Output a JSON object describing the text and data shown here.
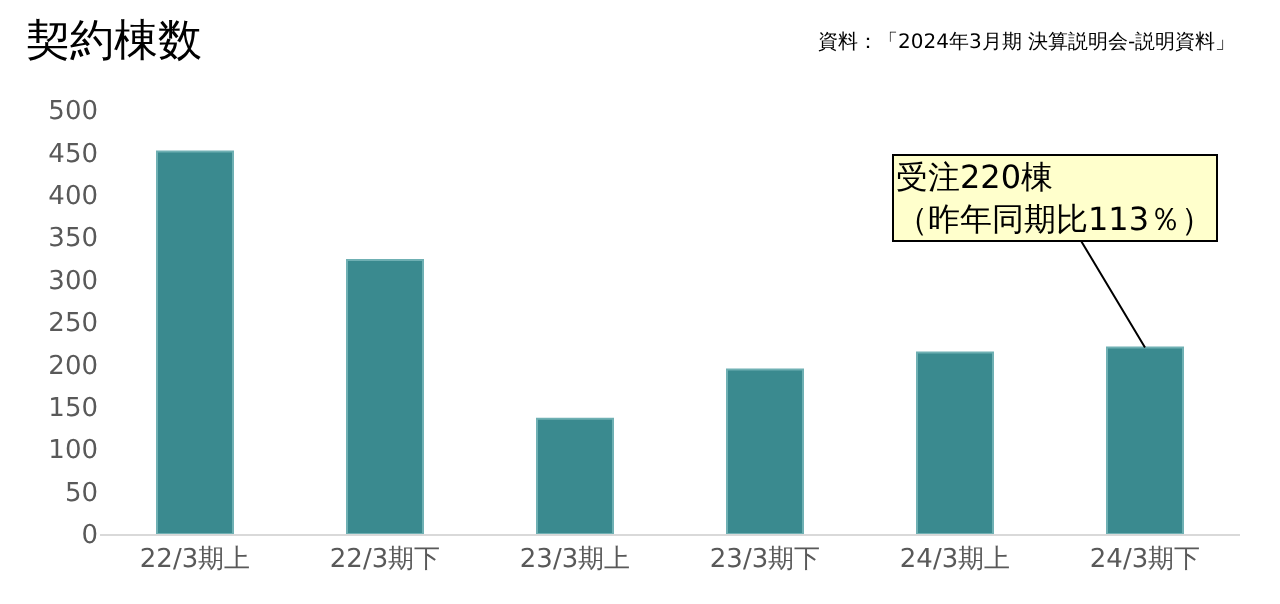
{
  "chart_data": {
    "type": "bar",
    "title": "契約棟数",
    "categories": [
      "22/3期上",
      "22/3期下",
      "23/3期上",
      "23/3期下",
      "24/3期上",
      "24/3期下"
    ],
    "values": [
      451,
      323,
      136,
      194,
      214,
      220
    ],
    "color": "#3a8a8f",
    "ylim": [
      0,
      500
    ],
    "yticks": [
      0,
      50,
      100,
      150,
      200,
      250,
      300,
      350,
      400,
      450,
      500
    ],
    "legend": false,
    "annotations": [
      "資料：「2024年3月期 決算説明会-説明資料」",
      {
        "text": "受注220棟（昨年同期比113％）",
        "x": "24/3期下",
        "y": 220
      }
    ]
  }
}
